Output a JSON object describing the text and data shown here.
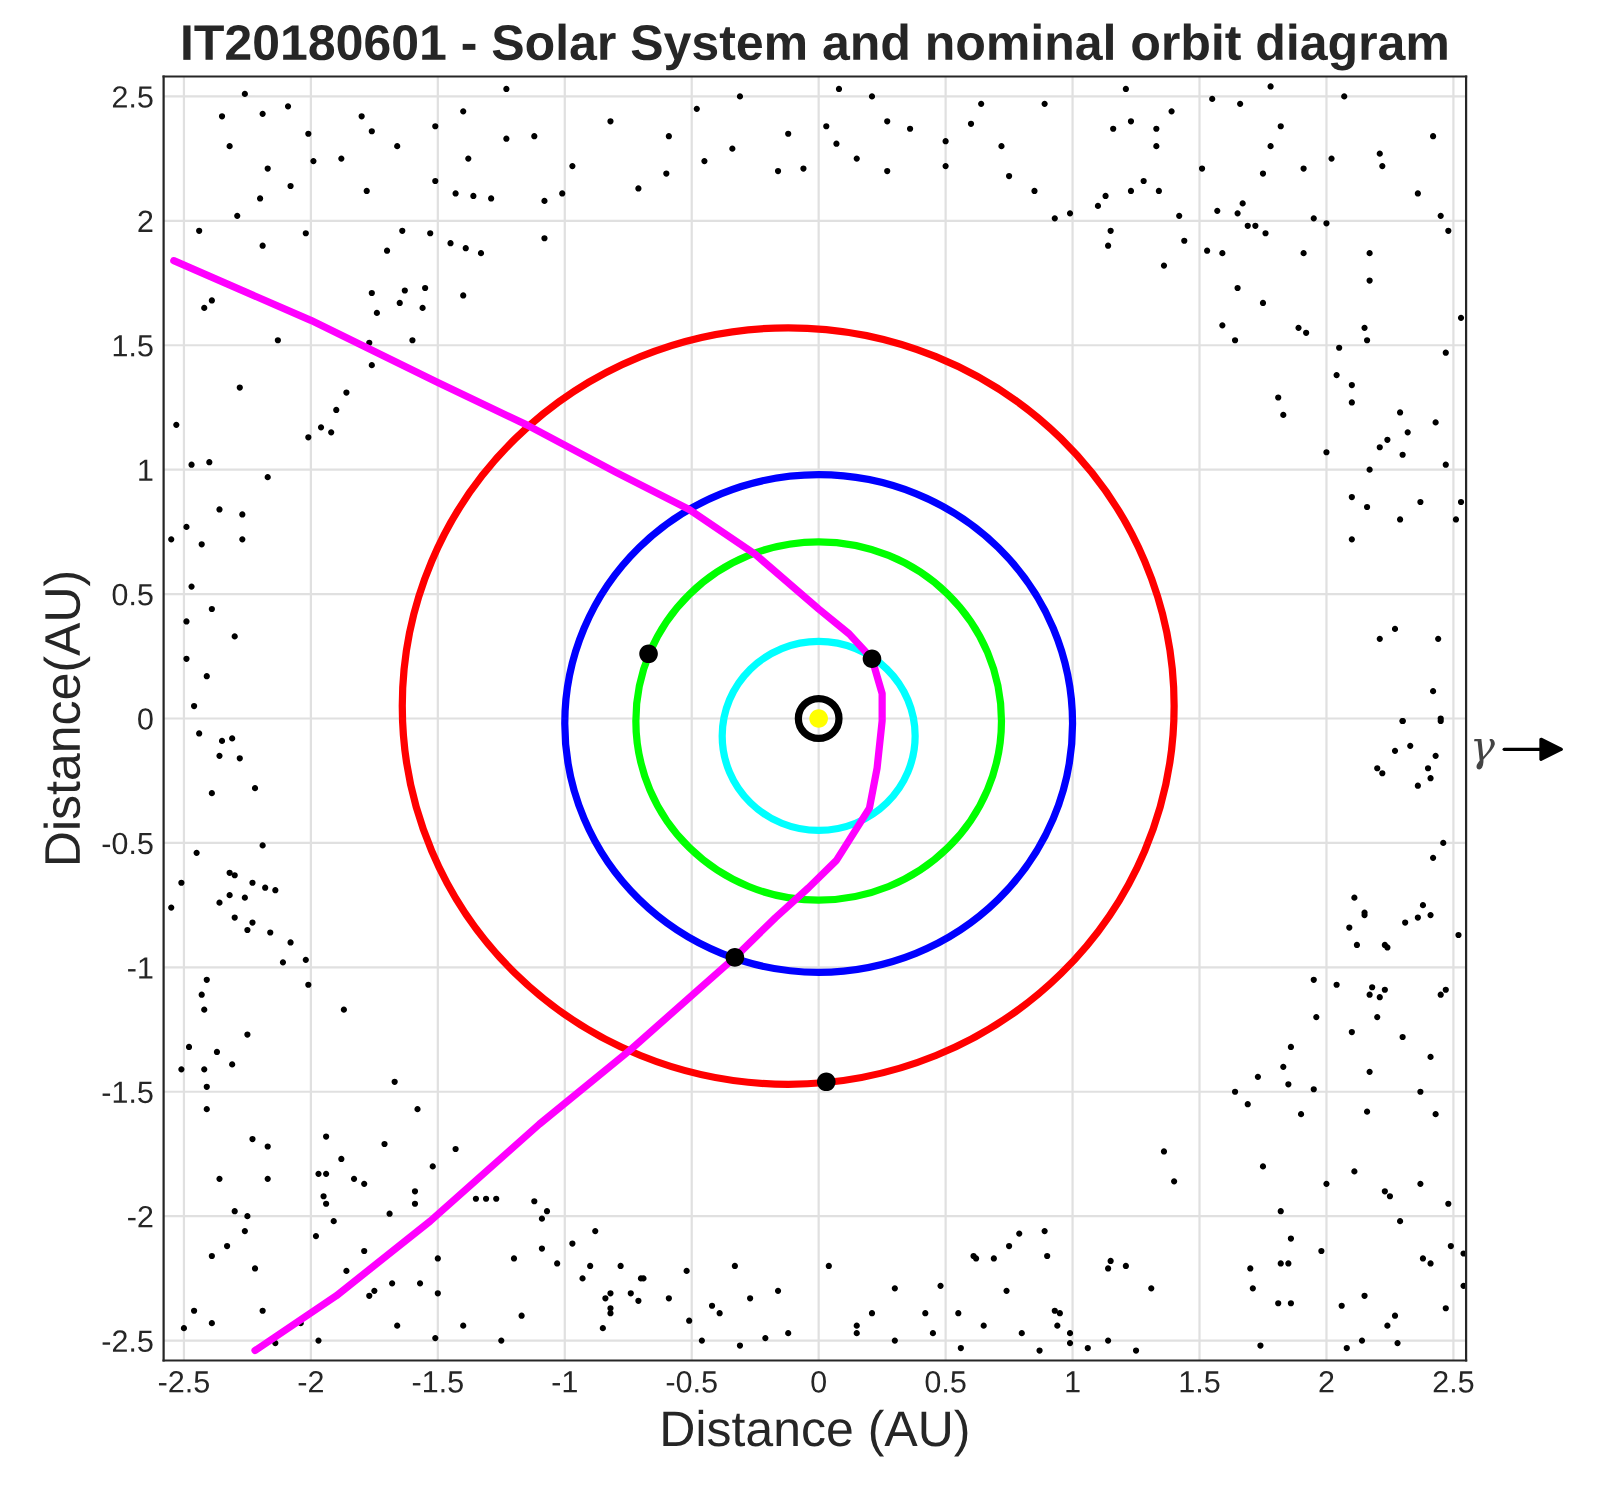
{
  "chart_data": {
    "type": "scatter",
    "title": "IT20180601 - Solar System and nominal orbit diagram",
    "xlabel": "Distance (AU)",
    "ylabel": "Distance(AU)",
    "xlim": [
      -2.58,
      2.55
    ],
    "ylim": [
      -2.58,
      2.58
    ],
    "xticks": [
      -2.5,
      -2,
      -1.5,
      -1,
      -0.5,
      0,
      0.5,
      1,
      1.5,
      2,
      2.5
    ],
    "yticks": [
      -2.5,
      -2,
      -1.5,
      -1,
      -0.5,
      0,
      0.5,
      1,
      1.5,
      2,
      2.5
    ],
    "grid": true,
    "legend": false,
    "annotations": [
      "γ"
    ],
    "series": [
      {
        "type": "scatter",
        "marker": "circle",
        "color": "#000000",
        "x": [
          -2.26,
          -2.35,
          -2.32,
          -2.19,
          -2.17,
          -2.2,
          -2.29,
          -2.44,
          -2.19,
          -2.08,
          -2.09,
          -2.01,
          -1.99,
          -2.02,
          -1.88,
          -1.8,
          -1.76,
          -1.78,
          -1.66,
          -1.64,
          -1.7,
          -1.51,
          -1.51,
          -1.4,
          -1.38,
          -1.43,
          -1.36,
          -1.29,
          -1.45,
          -1.39,
          -1.33,
          -1.53,
          -1.23,
          -1.23,
          -1.12,
          -1.08,
          -1.08,
          -1.01,
          -0.97,
          -0.82,
          -0.71,
          -0.59,
          -0.6,
          -0.48,
          -0.45,
          -0.34,
          -0.31,
          -0.16,
          -0.12,
          -0.06,
          -2.42,
          -2.39,
          -2.13,
          -2.28,
          -2.53,
          -2.47,
          -2.4,
          -2.17,
          -2.36,
          -2.27,
          -2.49,
          -2.43,
          -2.27,
          -2.55,
          -2.47,
          -2.39,
          -2.49,
          -2.3,
          -2.49,
          -2.41,
          -2.46,
          -1.76,
          -1.74,
          -1.63,
          -1.55,
          -1.65,
          -1.56,
          -1.6,
          -1.4,
          -1.77,
          -1.76,
          -1.86,
          -1.9,
          -1.96,
          -1.92,
          -2.01,
          0.08,
          0.21,
          0.03,
          0.07,
          0.15,
          0.27,
          0.27,
          0.36,
          0.5,
          0.5,
          0.6,
          0.64,
          0.72,
          0.75,
          0.85,
          0.89,
          0.93,
          0.99,
          1.1,
          1.13,
          1.15,
          1.14,
          1.16,
          1.21,
          1.23,
          1.23,
          1.28,
          1.33,
          1.33,
          1.34,
          1.36,
          1.39,
          1.42,
          1.44,
          1.51,
          1.55,
          1.53,
          1.57,
          1.59,
          1.65,
          1.66,
          1.67,
          1.69,
          1.72,
          1.76,
          1.65,
          1.75,
          1.59,
          1.64,
          1.75,
          1.78,
          1.82,
          1.78,
          1.91,
          1.95,
          1.91,
          1.89,
          1.92,
          2.0,
          2.02,
          2.07,
          2.05,
          2.04,
          2.1,
          2.1,
          1.81,
          1.83,
          2.0,
          2.17,
          2.15,
          2.16,
          2.17,
          2.17,
          2.21,
          2.22,
          2.29,
          2.24,
          2.3,
          2.32,
          2.21,
          2.1,
          2.16,
          2.1,
          2.29,
          2.37,
          2.43,
          2.47,
          2.51,
          2.53,
          2.36,
          2.42,
          2.45,
          2.48,
          2.47,
          2.53,
          2.21,
          2.27,
          2.44,
          2.42,
          2.3,
          2.45,
          -2.44,
          -2.35,
          -2.31,
          -2.36,
          -2.28,
          -2.39,
          -2.22,
          -2.45,
          -2.19,
          -2.51,
          -2.55,
          -2.32,
          -2.3,
          -2.23,
          -2.18,
          -2.14,
          -2.36,
          -2.32,
          -2.26,
          -2.3,
          -2.25,
          -2.23,
          -2.16,
          -2.08,
          -2.11,
          -2.02,
          -2.01,
          -1.87,
          -2.41,
          -2.43,
          -2.42,
          -2.48,
          -2.51,
          -2.42,
          -2.41,
          -2.41,
          -2.37,
          -2.31,
          -2.25,
          -2.23,
          -2.17,
          -2.17,
          -2.36,
          -2.3,
          -2.25,
          -2.26,
          -2.33,
          -2.39,
          -2.22,
          -2.19,
          -2.46,
          -2.39,
          -2.5,
          -2.14,
          -2.04,
          -1.97,
          -1.98,
          -1.97,
          -1.94,
          -1.94,
          -1.88,
          -1.95,
          -1.94,
          -1.91,
          -1.83,
          -1.79,
          -1.86,
          -1.79,
          -1.77,
          -1.75,
          -1.71,
          -1.69,
          -1.67,
          -1.68,
          -1.66,
          -1.59,
          -1.59,
          -1.58,
          -1.57,
          -1.52,
          -1.5,
          -1.5,
          -1.51,
          -1.43,
          -1.4,
          -1.35,
          -1.31,
          -1.27,
          -1.25,
          -1.2,
          -1.17,
          -1.12,
          -1.09,
          -1.07,
          -1.09,
          -1.03,
          -0.97,
          -0.93,
          -0.9,
          -0.88,
          -0.84,
          -0.85,
          -0.82,
          -0.82,
          -0.82,
          -0.78,
          -0.74,
          -0.71,
          -0.7,
          -0.69,
          -0.59,
          -0.52,
          -0.51,
          -0.46,
          -0.42,
          -0.39,
          -0.33,
          -0.31,
          -0.27,
          -0.21,
          -0.16,
          -0.12,
          0.04,
          0.15,
          0.15,
          0.21,
          0.3,
          0.3,
          0.42,
          0.45,
          0.48,
          0.55,
          0.56,
          0.61,
          0.62,
          0.65,
          0.69,
          0.74,
          0.75,
          0.79,
          0.8,
          0.87,
          0.89,
          0.9,
          0.93,
          0.94,
          0.95,
          0.99,
          0.99,
          1.06,
          1.14,
          1.15,
          1.14,
          1.21,
          1.25,
          1.31,
          1.36,
          1.4,
          1.64,
          1.69,
          1.73,
          1.75,
          1.7,
          1.71,
          1.74,
          1.81,
          1.82,
          1.82,
          1.85,
          1.86,
          1.86,
          1.83,
          1.85,
          1.86,
          1.9,
          1.95,
          1.95,
          1.96,
          1.98,
          2.0,
          2.04,
          2.06,
          2.08,
          2.1,
          2.11,
          2.14,
          2.15,
          2.16,
          2.17,
          2.17,
          2.18,
          2.2,
          2.21,
          2.23,
          2.23,
          2.25,
          2.24,
          2.27,
          2.28,
          2.29,
          2.3,
          2.37,
          2.37,
          2.38,
          2.41,
          2.41,
          2.43,
          2.45,
          2.47,
          2.48,
          2.47,
          2.49,
          2.54,
          2.54,
          2.3,
          2.45,
          2.33,
          2.27,
          2.43,
          2.2,
          2.22,
          2.4,
          2.41,
          2.36,
          2.46,
          2.42,
          2.11,
          2.15,
          2.15,
          2.09,
          2.12,
          2.23,
          2.24,
          2.31,
          2.36,
          2.38,
          2.41,
          2.52
        ],
        "values": [
          2.51,
          2.42,
          2.3,
          2.43,
          2.21,
          2.09,
          2.02,
          1.96,
          1.9,
          2.14,
          2.46,
          2.35,
          2.24,
          1.95,
          2.25,
          2.42,
          2.36,
          2.12,
          2.3,
          1.96,
          1.88,
          2.38,
          2.16,
          2.44,
          2.25,
          2.11,
          2.1,
          2.09,
          1.91,
          1.89,
          1.87,
          1.95,
          2.53,
          2.33,
          2.34,
          2.08,
          1.93,
          2.11,
          2.22,
          2.4,
          2.13,
          2.34,
          2.19,
          2.45,
          2.24,
          2.29,
          2.5,
          2.2,
          2.35,
          2.21,
          1.65,
          1.68,
          1.52,
          1.33,
          1.18,
          1.02,
          1.03,
          0.97,
          0.84,
          0.82,
          0.77,
          0.7,
          0.72,
          0.72,
          0.53,
          0.44,
          0.39,
          0.33,
          0.24,
          0.17,
          0.05,
          1.71,
          1.63,
          1.72,
          1.73,
          1.67,
          1.65,
          1.52,
          1.7,
          1.51,
          1.42,
          1.31,
          1.24,
          1.17,
          1.15,
          1.13,
          2.53,
          2.5,
          2.38,
          2.31,
          2.25,
          2.2,
          2.4,
          2.37,
          2.32,
          2.22,
          2.39,
          2.47,
          2.3,
          2.18,
          2.12,
          2.47,
          2.01,
          2.03,
          2.06,
          2.1,
          1.96,
          1.9,
          2.37,
          2.53,
          2.4,
          2.12,
          2.16,
          2.37,
          2.3,
          2.12,
          1.82,
          2.44,
          2.02,
          1.92,
          2.21,
          2.49,
          1.88,
          2.04,
          1.87,
          2.03,
          2.47,
          2.07,
          1.98,
          1.98,
          1.95,
          1.73,
          1.67,
          1.58,
          1.52,
          2.19,
          2.3,
          2.38,
          2.54,
          2.21,
          2.01,
          1.87,
          1.57,
          1.55,
          1.99,
          2.25,
          2.5,
          1.49,
          1.38,
          1.34,
          1.27,
          1.29,
          1.22,
          1.07,
          1.0,
          1.57,
          1.52,
          1.87,
          1.76,
          2.27,
          2.22,
          1.23,
          1.12,
          1.06,
          1.15,
          1.09,
          0.89,
          0.85,
          0.72,
          0.8,
          0.87,
          1.19,
          1.02,
          0.8,
          0.87,
          2.11,
          2.34,
          2.02,
          1.96,
          1.47,
          1.61,
          0.32,
          0.36,
          0.32,
          0.11,
          -0.01,
          0.0,
          -0.06,
          -0.09,
          -0.08,
          -0.15,
          -0.16,
          -0.3,
          -0.28,
          -0.54,
          -0.51,
          -0.66,
          -0.76,
          -0.62,
          -0.63,
          -0.66,
          -0.68,
          -0.69,
          -0.74,
          -0.71,
          -0.72,
          -0.8,
          -0.85,
          -0.82,
          -0.86,
          -0.9,
          -0.98,
          -0.97,
          -1.07,
          -1.17,
          -1.05,
          -1.11,
          -1.17,
          -1.32,
          -1.41,
          -1.41,
          -1.48,
          -1.57,
          -1.34,
          -1.39,
          -1.27,
          -1.69,
          -1.72,
          -1.85,
          -1.85,
          -1.98,
          -2.0,
          -2.06,
          -2.12,
          -2.16,
          -2.21,
          -2.38,
          -2.38,
          -2.43,
          -2.45,
          -2.51,
          -2.43,
          -2.5,
          -2.08,
          -1.83,
          -1.83,
          -1.68,
          -1.77,
          -1.92,
          -1.95,
          -2.02,
          -1.85,
          -1.87,
          -2.22,
          -2.14,
          -2.32,
          -2.3,
          -1.71,
          -1.99,
          -1.46,
          -2.27,
          -2.44,
          -1.9,
          -1.95,
          -1.57,
          -2.27,
          -1.8,
          -2.17,
          -2.31,
          -2.49,
          -1.73,
          -2.44,
          -1.93,
          -1.93,
          -1.93,
          -2.5,
          -2.17,
          -2.4,
          -1.94,
          -2.01,
          -1.98,
          -2.13,
          -2.19,
          -2.11,
          -2.25,
          -2.2,
          -2.06,
          -2.33,
          -2.45,
          -2.31,
          -2.37,
          -2.39,
          -2.2,
          -2.31,
          -2.34,
          -2.25,
          -2.25,
          -2.33,
          -2.22,
          -2.42,
          -2.5,
          -2.36,
          -2.39,
          -2.2,
          -2.52,
          -2.33,
          -2.49,
          -2.3,
          -2.47,
          -2.2,
          -2.44,
          -2.47,
          -2.39,
          -2.29,
          -2.5,
          -2.39,
          -2.47,
          -2.28,
          -2.39,
          -2.53,
          -2.16,
          -2.17,
          -2.44,
          -2.17,
          -2.3,
          -2.12,
          -2.07,
          -2.47,
          -2.54,
          -2.06,
          -2.16,
          -2.38,
          -2.44,
          -2.39,
          -2.47,
          -2.51,
          -2.53,
          -2.21,
          -2.18,
          -2.5,
          -2.2,
          -2.54,
          -2.29,
          -1.74,
          -1.86,
          -1.5,
          -1.55,
          -1.44,
          -1.8,
          -2.21,
          -2.29,
          -2.52,
          -2.35,
          -1.98,
          -2.19,
          -2.19,
          -2.09,
          -2.35,
          -1.4,
          -1.47,
          -1.32,
          -1.59,
          -1.05,
          -1.49,
          -1.2,
          -2.14,
          -1.87,
          -1.07,
          -2.36,
          -2.53,
          -1.26,
          -1.82,
          -2.5,
          -2.32,
          -1.58,
          -1.42,
          -1.11,
          -1.08,
          -1.2,
          -1.12,
          -1.09,
          -1.9,
          -1.92,
          -2.44,
          -2.4,
          -2.51,
          -2.02,
          -1.28,
          -1.5,
          -1.87,
          -2.17,
          -2.19,
          -1.36,
          -1.59,
          -1.11,
          -1.09,
          -1.95,
          -2.37,
          -2.12,
          -2.15,
          -2.28,
          -0.01,
          -0.01,
          -0.11,
          -0.13,
          -0.15,
          -0.2,
          -0.22,
          -0.2,
          -0.24,
          -0.27,
          -0.5,
          -0.56,
          -0.72,
          -0.78,
          -0.79,
          -0.84,
          -0.91,
          -0.91,
          -0.92,
          -0.82,
          -0.8,
          -0.75,
          -0.79,
          -0.87
        ]
      },
      {
        "type": "line",
        "color": "#ff00ff",
        "x": [
          -2.54,
          -2.0,
          -1.5,
          -1.15,
          -0.8,
          -0.51,
          -0.25,
          0,
          0.12,
          0.21,
          0.25,
          0.25,
          0.23,
          0.2,
          0.07,
          -0.04,
          -0.17,
          -0.33,
          -0.74,
          -1.1,
          -1.53,
          -1.9,
          -2.22
        ],
        "values": [
          1.84,
          1.6,
          1.35,
          1.18,
          0.99,
          0.84,
          0.66,
          0.44,
          0.34,
          0.24,
          0.1,
          -0.01,
          -0.2,
          -0.36,
          -0.57,
          -0.68,
          -0.8,
          -0.96,
          -1.33,
          -1.63,
          -2.02,
          -2.32,
          -2.54
        ]
      },
      {
        "type": "scatter",
        "marker": "circle",
        "color": "#ffff00",
        "x": [
          0
        ],
        "values": [
          0
        ]
      },
      {
        "type": "scatter",
        "marker": "circle",
        "color": "#000000",
        "x": [
          -0.67,
          0.21,
          -0.33,
          0.03
        ],
        "values": [
          0.26,
          0.24,
          -0.96,
          -1.46
        ]
      }
    ]
  }
}
